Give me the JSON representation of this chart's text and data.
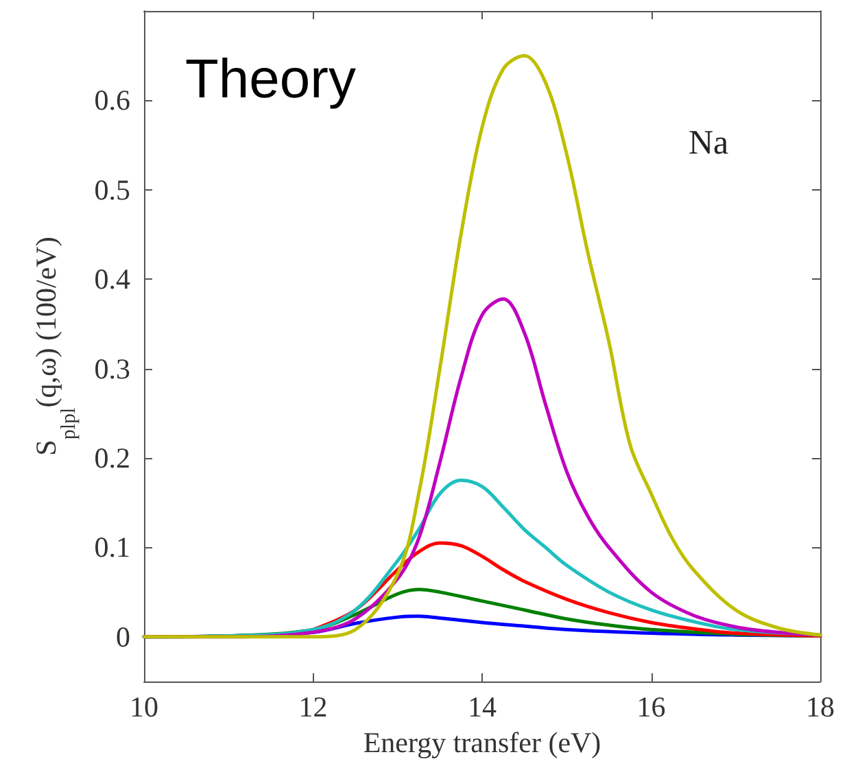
{
  "chart_data": {
    "type": "line",
    "xlabel": "Energy transfer (eV)",
    "ylabel": "S$_{plpl}$(q,ω) (100/eV)",
    "annotations": [
      "Theory",
      "Na"
    ],
    "xlim": [
      10,
      18
    ],
    "xticks": [
      10,
      12,
      14,
      16,
      18
    ],
    "ylim": [
      -0.05,
      0.7
    ],
    "yticks": [
      0,
      0.1,
      0.2,
      0.3,
      0.4,
      0.5,
      0.6
    ],
    "grid": false,
    "marker": "none",
    "line_style": "solid",
    "series": [
      {
        "color": "#0000ff",
        "x": [
          10,
          11,
          12,
          12.5,
          13,
          13.25,
          13.5,
          14,
          14.5,
          15,
          16,
          17,
          18
        ],
        "values": [
          0,
          0.001,
          0.005,
          0.015,
          0.022,
          0.023,
          0.021,
          0.016,
          0.012,
          0.008,
          0.004,
          0.002,
          0.001
        ]
      },
      {
        "color": "#008000",
        "x": [
          10,
          11,
          12,
          12.5,
          13,
          13.25,
          13.5,
          14,
          14.5,
          15,
          15.5,
          16,
          17,
          18
        ],
        "values": [
          0,
          0.001,
          0.008,
          0.025,
          0.048,
          0.053,
          0.05,
          0.04,
          0.03,
          0.02,
          0.013,
          0.008,
          0.003,
          0.001
        ]
      },
      {
        "color": "#ff0000",
        "x": [
          12,
          12.5,
          13,
          13.25,
          13.5,
          13.75,
          14,
          14.25,
          14.5,
          15,
          15.5,
          16,
          16.5,
          17,
          18
        ],
        "values": [
          0.008,
          0.03,
          0.075,
          0.095,
          0.105,
          0.102,
          0.09,
          0.075,
          0.062,
          0.042,
          0.027,
          0.016,
          0.009,
          0.004,
          0.001
        ]
      },
      {
        "color": "#1fbfbf",
        "x": [
          10,
          11,
          12,
          12.5,
          13,
          13.25,
          13.5,
          13.75,
          14,
          14.25,
          14.5,
          14.75,
          15,
          15.5,
          16,
          16.5,
          17,
          18
        ],
        "values": [
          0,
          0.001,
          0.008,
          0.03,
          0.085,
          0.12,
          0.16,
          0.175,
          0.168,
          0.145,
          0.12,
          0.1,
          0.08,
          0.05,
          0.03,
          0.017,
          0.008,
          0.002
        ]
      },
      {
        "color": "#bf00bf",
        "x": [
          10,
          11,
          12,
          12.5,
          13,
          13.25,
          13.5,
          13.75,
          14,
          14.25,
          14.5,
          14.75,
          15,
          15.25,
          15.5,
          16,
          16.5,
          17,
          17.5,
          18
        ],
        "values": [
          0,
          0,
          0.005,
          0.02,
          0.065,
          0.11,
          0.195,
          0.29,
          0.36,
          0.378,
          0.34,
          0.26,
          0.185,
          0.135,
          0.1,
          0.05,
          0.024,
          0.011,
          0.005,
          0.002
        ]
      },
      {
        "color": "#bfbf00",
        "x": [
          10,
          11,
          12,
          12.5,
          13,
          13.25,
          13.5,
          13.75,
          14,
          14.25,
          14.5,
          14.75,
          15,
          15.25,
          15.5,
          15.75,
          16,
          16.25,
          16.5,
          17,
          17.5,
          18
        ],
        "values": [
          0,
          0,
          0,
          0.008,
          0.07,
          0.16,
          0.3,
          0.45,
          0.57,
          0.635,
          0.65,
          0.62,
          0.54,
          0.43,
          0.33,
          0.215,
          0.16,
          0.11,
          0.075,
          0.03,
          0.01,
          0.002
        ]
      }
    ]
  }
}
